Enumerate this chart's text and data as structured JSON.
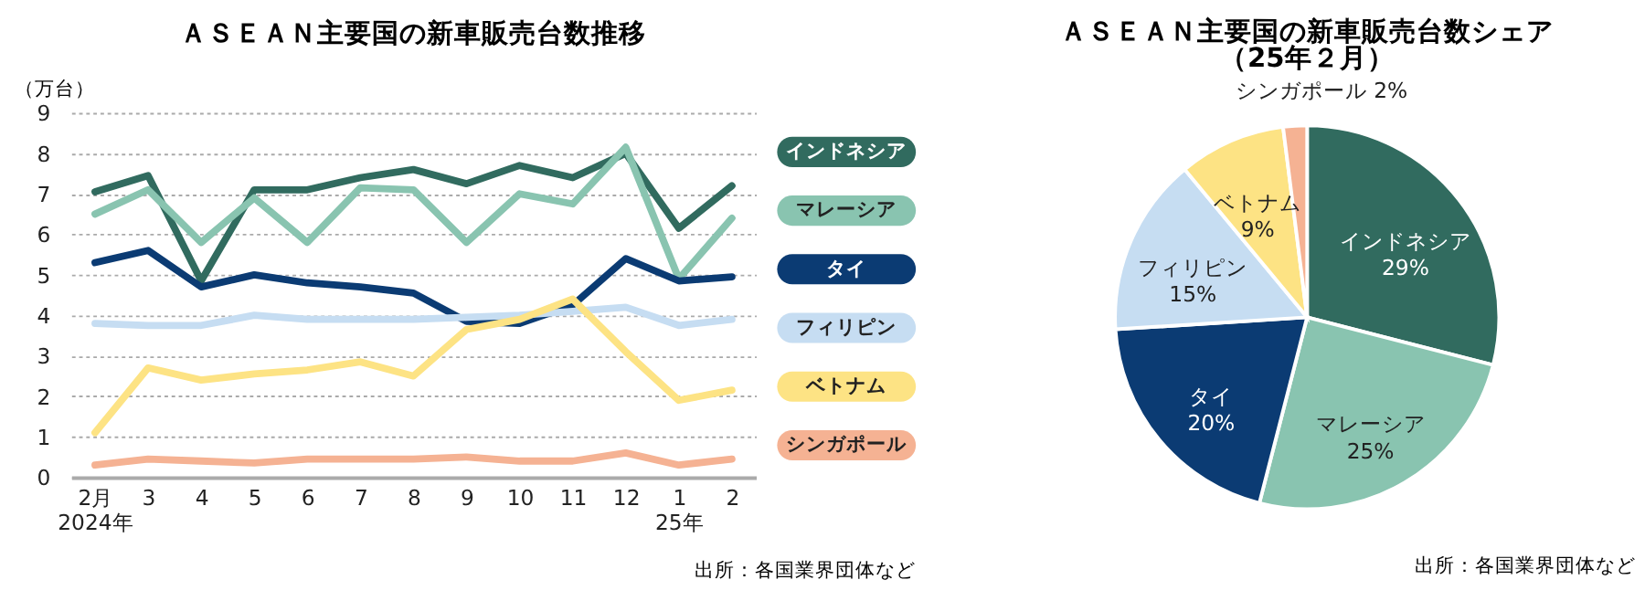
{
  "chart_data": [
    {
      "type": "line",
      "title": "ＡＳＥＡＮ主要国の新車販売台数推移",
      "ylabel": "（万台）",
      "categories": [
        "2月\n2024年",
        "3",
        "4",
        "5",
        "6",
        "7",
        "8",
        "9",
        "10",
        "11",
        "12",
        "1\n25年",
        "2"
      ],
      "series": [
        {
          "name": "インドネシア",
          "color": "#316b5f",
          "values": [
            7.05,
            7.45,
            4.85,
            7.1,
            7.1,
            7.4,
            7.6,
            7.25,
            7.7,
            7.4,
            8.0,
            6.15,
            7.2
          ]
        },
        {
          "name": "マレーシア",
          "color": "#89c4b0",
          "values": [
            6.5,
            7.1,
            5.8,
            6.9,
            5.8,
            7.15,
            7.1,
            5.8,
            7.0,
            6.75,
            8.15,
            4.9,
            6.4
          ]
        },
        {
          "name": "タイ",
          "color": "#0b3b73",
          "values": [
            5.3,
            5.6,
            4.7,
            5.0,
            4.8,
            4.7,
            4.55,
            3.85,
            3.8,
            4.25,
            5.4,
            4.85,
            4.95
          ]
        },
        {
          "name": "フィリピン",
          "color": "#c6ddf2",
          "values": [
            3.8,
            3.75,
            3.75,
            4.0,
            3.9,
            3.9,
            3.9,
            3.95,
            4.0,
            4.1,
            4.2,
            3.75,
            3.9
          ]
        },
        {
          "name": "ベトナム",
          "color": "#fde384",
          "values": [
            1.1,
            2.7,
            2.4,
            2.55,
            2.65,
            2.85,
            2.5,
            3.65,
            3.9,
            4.4,
            3.1,
            1.9,
            2.15
          ]
        },
        {
          "name": "シンガポール",
          "color": "#f5b293",
          "values": [
            0.3,
            0.45,
            0.4,
            0.35,
            0.45,
            0.45,
            0.45,
            0.5,
            0.4,
            0.4,
            0.6,
            0.3,
            0.45
          ]
        }
      ],
      "ylim": [
        0,
        9
      ],
      "yticks": [
        0,
        1,
        2,
        3,
        4,
        5,
        6,
        7,
        8,
        9
      ],
      "grid": "y",
      "legend": "right",
      "marker": "none",
      "line_style": "solid",
      "annotations": [
        "出所：各国業界団体など"
      ]
    },
    {
      "type": "pie",
      "title": "ＡＳＥＡＮ主要国の新車販売台数シェア",
      "subtitle": "（25年２月）",
      "categories": [
        "インドネシア",
        "マレーシア",
        "タイ",
        "フィリピン",
        "ベトナム",
        "シンガポール"
      ],
      "values": [
        29,
        25,
        20,
        15,
        9,
        2
      ],
      "colors": [
        "#316b5f",
        "#89c4b0",
        "#0b3b73",
        "#c6ddf2",
        "#fde384",
        "#f5b293"
      ],
      "value_labels": [
        "29%",
        "25%",
        "20%",
        "15%",
        "9%",
        "2%"
      ],
      "annotations": [
        "出所：各国業界団体など"
      ]
    }
  ]
}
